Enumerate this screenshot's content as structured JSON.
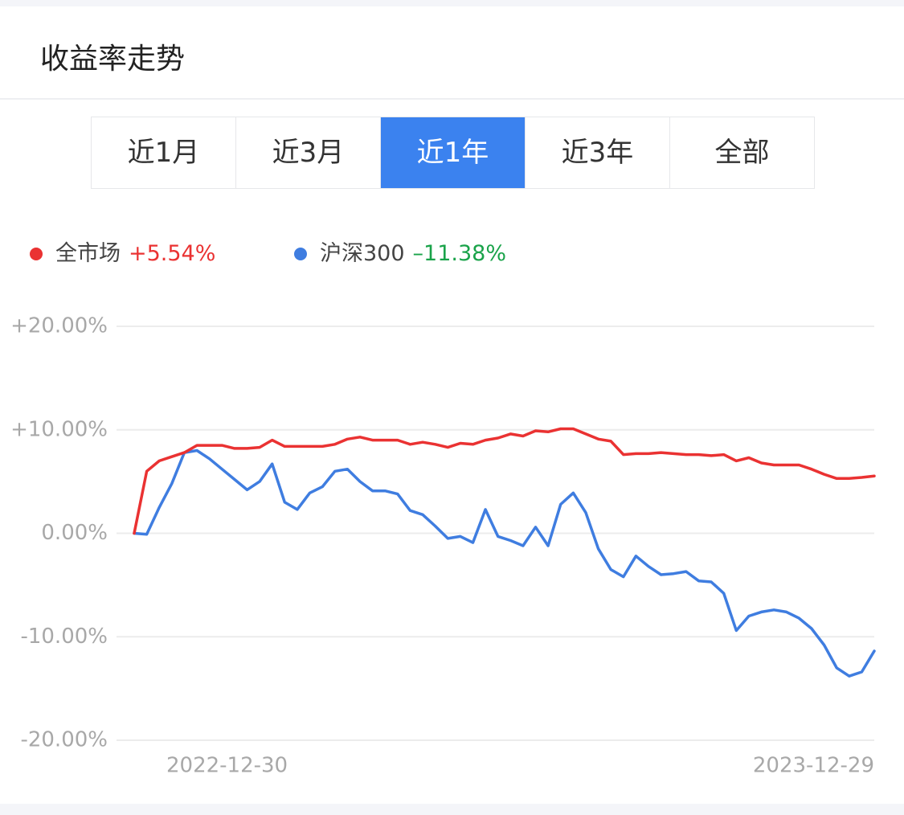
{
  "header": {
    "title": "收益率走势"
  },
  "tabs": {
    "items": [
      "近1月",
      "近3月",
      "近1年",
      "近3年",
      "全部"
    ],
    "active": 2
  },
  "chart_data": {
    "type": "line",
    "categories": [
      "2022-12-30",
      null,
      null,
      null,
      null,
      null,
      null,
      null,
      null,
      null,
      null,
      null,
      null,
      null,
      null,
      null,
      null,
      null,
      null,
      null,
      null,
      null,
      null,
      null,
      null,
      null,
      null,
      null,
      null,
      null,
      null,
      null,
      null,
      null,
      null,
      null,
      null,
      null,
      null,
      null,
      null,
      null,
      null,
      null,
      null,
      null,
      null,
      null,
      null,
      null,
      null,
      null,
      null,
      null,
      null,
      null,
      null,
      null,
      null,
      "2023-12-29"
    ],
    "series": [
      {
        "name": "全市场",
        "legend_value": "+5.54%",
        "color": "#ea3232",
        "values": [
          0,
          6.0,
          7.0,
          7.4,
          7.8,
          8.5,
          8.5,
          8.5,
          8.2,
          8.2,
          8.3,
          9.0,
          8.4,
          8.4,
          8.4,
          8.4,
          8.6,
          9.1,
          9.3,
          9.0,
          9.0,
          9.0,
          8.6,
          8.8,
          8.6,
          8.3,
          8.7,
          8.6,
          9.0,
          9.2,
          9.6,
          9.4,
          9.9,
          9.8,
          10.1,
          10.1,
          9.6,
          9.1,
          8.9,
          7.6,
          7.7,
          7.7,
          7.8,
          7.7,
          7.6,
          7.6,
          7.5,
          7.6,
          7.0,
          7.3,
          6.8,
          6.6,
          6.6,
          6.6,
          6.2,
          5.7,
          5.3,
          5.3,
          5.4,
          5.54
        ]
      },
      {
        "name": "沪深300",
        "legend_value": "–11.38%",
        "color": "#3f7de0",
        "values": [
          0,
          -0.1,
          2.5,
          4.8,
          7.8,
          8.0,
          7.2,
          6.2,
          5.2,
          4.2,
          5.0,
          6.7,
          3.0,
          2.3,
          3.9,
          4.5,
          6.0,
          6.2,
          5.0,
          4.1,
          4.1,
          3.8,
          2.2,
          1.8,
          0.7,
          -0.5,
          -0.3,
          -0.9,
          2.3,
          -0.3,
          -0.7,
          -1.2,
          0.6,
          -1.2,
          2.8,
          3.9,
          2.0,
          -1.5,
          -3.5,
          -4.2,
          -2.2,
          -3.2,
          -4.0,
          -3.9,
          -3.7,
          -4.6,
          -4.7,
          -5.8,
          -9.4,
          -8.0,
          -7.6,
          -7.4,
          -7.6,
          -8.2,
          -9.2,
          -10.8,
          -13.0,
          -13.8,
          -13.4,
          -11.38
        ]
      }
    ],
    "ylim": [
      -20,
      20
    ],
    "yticks": [
      {
        "value": 20,
        "label": "+20.00%"
      },
      {
        "value": 10,
        "label": "+10.00%"
      },
      {
        "value": 0,
        "label": "0.00%"
      },
      {
        "value": -10,
        "label": "-10.00%"
      },
      {
        "value": -20,
        "label": "-20.00%"
      }
    ],
    "grid": true
  }
}
